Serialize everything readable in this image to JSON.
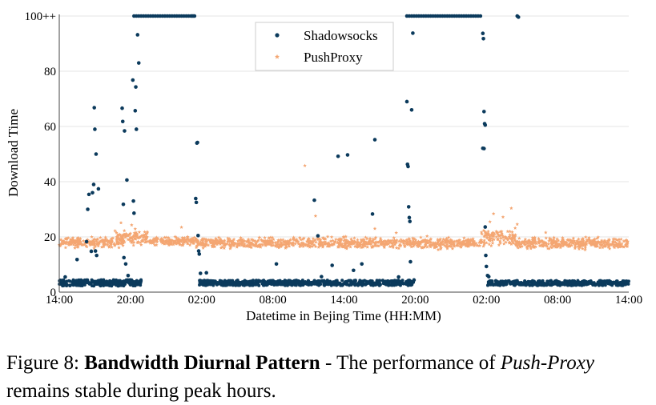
{
  "chart_data": {
    "type": "scatter",
    "title": "",
    "xlabel": "Datetime in Bejing Time (HH:MM)",
    "ylabel": "Download Time",
    "x_unit": "hours",
    "xlim": [
      0,
      48
    ],
    "ylim": [
      0,
      100
    ],
    "x_ticks": [
      {
        "value": 0,
        "label": "14:00"
      },
      {
        "value": 6,
        "label": "20:00"
      },
      {
        "value": 12,
        "label": "02:00"
      },
      {
        "value": 18,
        "label": "08:00"
      },
      {
        "value": 24,
        "label": "14:00"
      },
      {
        "value": 30,
        "label": "20:00"
      },
      {
        "value": 36,
        "label": "02:00"
      },
      {
        "value": 42,
        "label": "08:00"
      },
      {
        "value": 48,
        "label": "14:00"
      }
    ],
    "y_ticks": [
      {
        "value": 0,
        "label": "0"
      },
      {
        "value": 20,
        "label": "20"
      },
      {
        "value": 40,
        "label": "40"
      },
      {
        "value": 60,
        "label": "60"
      },
      {
        "value": 80,
        "label": "80"
      },
      {
        "value": 100,
        "label": "100++"
      }
    ],
    "grid": "horizontal",
    "legend_position": "top-center",
    "series": [
      {
        "name": "Shadowsocks",
        "marker": "circle",
        "color": "#0b3a5c",
        "points": [
          [
            0.2,
            2.8
          ],
          [
            0.5,
            5.5
          ],
          [
            0.9,
            2.4
          ],
          [
            1.3,
            3.4
          ],
          [
            1.5,
            11.8
          ],
          [
            1.7,
            3.0
          ],
          [
            2.1,
            4.1
          ],
          [
            2.3,
            18.3
          ],
          [
            2.4,
            30
          ],
          [
            2.5,
            35.4
          ],
          [
            2.6,
            3.2
          ],
          [
            2.7,
            14.8
          ],
          [
            2.8,
            36
          ],
          [
            2.9,
            39
          ],
          [
            2.95,
            66.8
          ],
          [
            3.0,
            59
          ],
          [
            3.05,
            14.9
          ],
          [
            3.1,
            50
          ],
          [
            3.15,
            13.3
          ],
          [
            3.3,
            37.4
          ],
          [
            3.4,
            4.2
          ],
          [
            3.6,
            3.1
          ],
          [
            4.0,
            2.9
          ],
          [
            4.4,
            3.6
          ],
          [
            4.8,
            2.6
          ],
          [
            5.1,
            3.2
          ],
          [
            5.3,
            66.6
          ],
          [
            5.35,
            61.8
          ],
          [
            5.4,
            31.8
          ],
          [
            5.45,
            12.5
          ],
          [
            5.5,
            58.4
          ],
          [
            5.6,
            10.2
          ],
          [
            5.7,
            40.6
          ],
          [
            5.8,
            6.0
          ],
          [
            6.0,
            2.7
          ],
          [
            6.1,
            3.5
          ],
          [
            6.2,
            76.8
          ],
          [
            6.25,
            33
          ],
          [
            6.3,
            28.6
          ],
          [
            6.4,
            65.7
          ],
          [
            6.45,
            74.3
          ],
          [
            6.5,
            59
          ],
          [
            6.6,
            93.2
          ],
          [
            6.7,
            83
          ],
          [
            6.8,
            2.9
          ],
          [
            6.3,
            100
          ],
          [
            6.5,
            100
          ],
          [
            6.7,
            100
          ],
          [
            6.9,
            100
          ],
          [
            7.1,
            100
          ],
          [
            7.3,
            100
          ],
          [
            7.5,
            100
          ],
          [
            7.7,
            100
          ],
          [
            7.9,
            100
          ],
          [
            8.1,
            100
          ],
          [
            8.3,
            100
          ],
          [
            8.5,
            100
          ],
          [
            8.7,
            100
          ],
          [
            8.9,
            100
          ],
          [
            9.1,
            100
          ],
          [
            9.3,
            100
          ],
          [
            9.5,
            100
          ],
          [
            9.7,
            100
          ],
          [
            9.9,
            100
          ],
          [
            10.1,
            100
          ],
          [
            10.3,
            100
          ],
          [
            10.5,
            100
          ],
          [
            10.7,
            100
          ],
          [
            10.9,
            100
          ],
          [
            11.1,
            100
          ],
          [
            11.2,
            100
          ],
          [
            11.3,
            100
          ],
          [
            11.4,
            100
          ],
          [
            11.5,
            33.9
          ],
          [
            11.55,
            32.5
          ],
          [
            11.6,
            54
          ],
          [
            11.65,
            54.2
          ],
          [
            11.7,
            20.5
          ],
          [
            11.75,
            14.9
          ],
          [
            11.8,
            13.8
          ],
          [
            11.9,
            6.8
          ],
          [
            12.0,
            4.0
          ],
          [
            12.2,
            3.0
          ],
          [
            12.4,
            7.0
          ],
          [
            12.8,
            3.4
          ],
          [
            13.5,
            3.1
          ],
          [
            14.5,
            3.5
          ],
          [
            15.5,
            3.0
          ],
          [
            16.5,
            3.3
          ],
          [
            17.5,
            3.1
          ],
          [
            18.3,
            10.2
          ],
          [
            18.6,
            3.2
          ],
          [
            19.5,
            3.0
          ],
          [
            20.4,
            3.3
          ],
          [
            21.3,
            3.1
          ],
          [
            21.5,
            33.3
          ],
          [
            21.8,
            20.4
          ],
          [
            22.1,
            5.6
          ],
          [
            22.6,
            3.2
          ],
          [
            23.0,
            9.7
          ],
          [
            23.5,
            49.2
          ],
          [
            24.0,
            3.1
          ],
          [
            24.3,
            49.7
          ],
          [
            24.6,
            3.3
          ],
          [
            24.8,
            7.9
          ],
          [
            25.2,
            3.0
          ],
          [
            25.5,
            10.2
          ],
          [
            26.0,
            3.4
          ],
          [
            26.4,
            28.3
          ],
          [
            26.6,
            55.2
          ],
          [
            27.0,
            3.1
          ],
          [
            27.6,
            3.0
          ],
          [
            28.2,
            3.2
          ],
          [
            28.6,
            5.5
          ],
          [
            29.0,
            3.1
          ],
          [
            29.3,
            69
          ],
          [
            29.35,
            46.3
          ],
          [
            29.4,
            45.5
          ],
          [
            29.45,
            30.9
          ],
          [
            29.5,
            27.0
          ],
          [
            29.55,
            25.6
          ],
          [
            29.6,
            11.0
          ],
          [
            29.7,
            66.0
          ],
          [
            29.8,
            93.8
          ],
          [
            29.9,
            4.4
          ],
          [
            29.3,
            100
          ],
          [
            29.5,
            100
          ],
          [
            29.7,
            100
          ],
          [
            29.9,
            100
          ],
          [
            30.1,
            100
          ],
          [
            30.3,
            100
          ],
          [
            30.5,
            100
          ],
          [
            30.7,
            100
          ],
          [
            30.9,
            100
          ],
          [
            31.1,
            100
          ],
          [
            31.3,
            100
          ],
          [
            31.5,
            100
          ],
          [
            31.7,
            100
          ],
          [
            31.9,
            100
          ],
          [
            32.1,
            100
          ],
          [
            32.3,
            100
          ],
          [
            32.5,
            100
          ],
          [
            32.7,
            100
          ],
          [
            32.9,
            100
          ],
          [
            33.1,
            100
          ],
          [
            33.3,
            100
          ],
          [
            33.5,
            100
          ],
          [
            33.7,
            100
          ],
          [
            33.9,
            100
          ],
          [
            34.1,
            100
          ],
          [
            34.3,
            100
          ],
          [
            34.5,
            100
          ],
          [
            34.7,
            100
          ],
          [
            34.9,
            100
          ],
          [
            35.1,
            100
          ],
          [
            35.3,
            100
          ],
          [
            35.5,
            100
          ],
          [
            35.7,
            93.7
          ],
          [
            35.75,
            91.8
          ],
          [
            35.8,
            65.4
          ],
          [
            35.85,
            61
          ],
          [
            35.9,
            60.5
          ],
          [
            35.7,
            52.1
          ],
          [
            35.8,
            52
          ],
          [
            35.9,
            23.6
          ],
          [
            35.95,
            13.3
          ],
          [
            36.0,
            9.3
          ],
          [
            36.1,
            6.0
          ],
          [
            36.2,
            5.6
          ],
          [
            36.3,
            3.4
          ],
          [
            38.6,
            100
          ],
          [
            38.7,
            99.6
          ],
          [
            37.0,
            3.2
          ],
          [
            38.0,
            3.3
          ],
          [
            39.0,
            3.1
          ],
          [
            40.0,
            3.2
          ],
          [
            41.0,
            3.0
          ],
          [
            42.0,
            3.3
          ],
          [
            43.0,
            3.1
          ],
          [
            44.0,
            3.2
          ],
          [
            45.0,
            3.0
          ],
          [
            46.0,
            3.3
          ],
          [
            47.0,
            3.1
          ],
          [
            47.8,
            3.2
          ]
        ],
        "bands": [
          {
            "x": [
              0,
              6.9
            ],
            "y": [
              2.2,
              4.5
            ]
          },
          {
            "x": [
              11.8,
              29.9
            ],
            "y": [
              2.4,
              4.3
            ]
          },
          {
            "x": [
              36.1,
              48
            ],
            "y": [
              2.4,
              4.2
            ]
          }
        ]
      },
      {
        "name": "PushProxy",
        "marker": "star",
        "color": "#f4a672",
        "points": [
          [
            4.7,
            22.2
          ],
          [
            5.2,
            25.1
          ],
          [
            5.5,
            20.8
          ],
          [
            6.1,
            24.3
          ],
          [
            6.4,
            22.9
          ],
          [
            7.2,
            21.8
          ],
          [
            10.3,
            23.5
          ],
          [
            20.7,
            45.8
          ],
          [
            21.6,
            27.6
          ],
          [
            26.6,
            23.0
          ],
          [
            28.4,
            21.5
          ],
          [
            31.0,
            20.3
          ],
          [
            35.9,
            21.8
          ],
          [
            36.3,
            25.5
          ],
          [
            36.6,
            28.4
          ],
          [
            37.4,
            27.2
          ],
          [
            38.1,
            30.4
          ],
          [
            38.6,
            24.6
          ],
          [
            41.0,
            21.6
          ]
        ],
        "bands": [
          {
            "x": [
              0,
              5.5
            ],
            "y": [
              15.5,
              20.5
            ]
          },
          {
            "x": [
              4.8,
              7.5
            ],
            "y": [
              16.5,
              23.0
            ]
          },
          {
            "x": [
              7.5,
              11.5
            ],
            "y": [
              16.5,
              20.5
            ]
          },
          {
            "x": [
              11.5,
              35.5
            ],
            "y": [
              15.0,
              20.5
            ]
          },
          {
            "x": [
              35.5,
              38.5
            ],
            "y": [
              15.5,
              24.0
            ]
          },
          {
            "x": [
              38.5,
              48
            ],
            "y": [
              15.0,
              20.5
            ]
          }
        ]
      }
    ]
  },
  "caption": {
    "prefix": "Figure 8: ",
    "bold": "Bandwidth Diurnal Pattern",
    "middle": " - The performance of ",
    "italic": "Push-Proxy",
    "suffix": " remains stable during peak hours."
  }
}
